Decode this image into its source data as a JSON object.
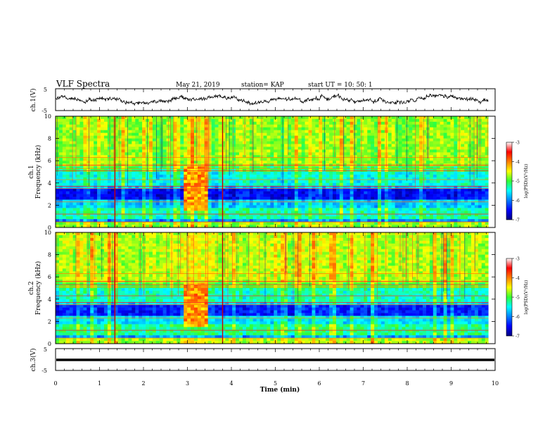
{
  "header": {
    "title": "VLF Spectra",
    "date": "May 21, 2019",
    "station": "station= KAP",
    "start": "start  UT =   10: 50: 1"
  },
  "chart_data": {
    "type": "heatmap",
    "xlabel": "Time (min)",
    "xlim": [
      0,
      10
    ],
    "x_ticks": [
      "0",
      "1",
      "2",
      "3",
      "4",
      "5",
      "6",
      "7",
      "8",
      "9",
      "10"
    ],
    "panels": [
      {
        "name": "ch1-waveform",
        "type": "line",
        "ylabel": "ch.1(V)",
        "ylim": [
          -5,
          5
        ],
        "y_ticks": [
          "5",
          "-5"
        ],
        "description_series": "noisy waveform near 0 V"
      },
      {
        "name": "ch1-spectrogram",
        "type": "heatmap",
        "ylabel_top": "ch.1",
        "ylabel": "Frequency (kHz)",
        "ylim": [
          0,
          10
        ],
        "y_ticks": [
          "0",
          "2",
          "4",
          "6",
          "8",
          "10"
        ]
      },
      {
        "name": "ch2-spectrogram",
        "type": "heatmap",
        "ylabel_top": "ch.2",
        "ylabel": "Frequency (kHz)",
        "ylim": [
          0,
          10
        ],
        "y_ticks": [
          "0",
          "2",
          "4",
          "6",
          "8",
          "10"
        ]
      },
      {
        "name": "ch3-waveform",
        "type": "line",
        "ylabel": "ch.3(V)",
        "ylim": [
          -5,
          5
        ],
        "y_ticks": [
          "5",
          "-5"
        ],
        "constant_value": 0
      }
    ],
    "colorbars": [
      {
        "label": "log(PSD)(V²/Hz)",
        "ticks": [
          "-3",
          "-4",
          "-5",
          "-6",
          "-7"
        ],
        "range": [
          -7,
          -3
        ]
      },
      {
        "label": "log(PSD)(V²/Hz)",
        "ticks": [
          "-3",
          "-4",
          "-5",
          "-6",
          "-7"
        ],
        "range": [
          -7,
          -3
        ]
      }
    ]
  }
}
